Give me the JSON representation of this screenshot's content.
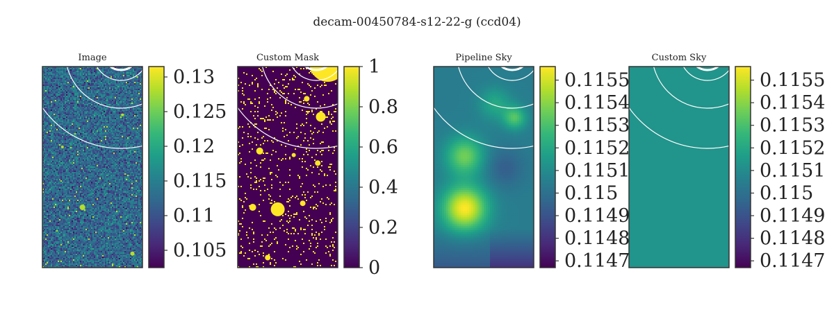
{
  "suptitle": "decam-00450784-s12-22-g (ccd04)",
  "colors": {
    "viridis": [
      "#440154",
      "#482878",
      "#3e4989",
      "#31688e",
      "#26828e",
      "#1f9e89",
      "#35b779",
      "#6ece58",
      "#b5de2b",
      "#fde725"
    ],
    "overlay_circles": "#ffffff",
    "frame": "#333333"
  },
  "chart_data": [
    {
      "type": "heatmap",
      "title": "Image",
      "render": "noise",
      "colorbar": {
        "min": 0.1025,
        "max": 0.1315,
        "ticks": [
          0.105,
          0.11,
          0.115,
          0.12,
          0.125,
          0.13
        ],
        "tick_labels": [
          "0.105",
          "0.11",
          "0.115",
          "0.12",
          "0.125",
          "0.13"
        ]
      }
    },
    {
      "type": "heatmap",
      "title": "Custom Mask",
      "render": "mask",
      "colorbar": {
        "min": 0,
        "max": 1,
        "ticks": [
          0,
          0.2,
          0.4,
          0.6,
          0.8,
          1
        ],
        "tick_labels": [
          "0",
          "0.2",
          "0.4",
          "0.6",
          "0.8",
          "1"
        ]
      }
    },
    {
      "type": "heatmap",
      "title": "Pipeline Sky",
      "render": "smooth",
      "colorbar": {
        "min": 0.11467,
        "max": 0.11556,
        "ticks": [
          0.1147,
          0.1148,
          0.1149,
          0.115,
          0.1151,
          0.1152,
          0.1153,
          0.1154,
          0.1155
        ],
        "tick_labels": [
          "0.1147",
          "0.1148",
          "0.1149",
          "0.115",
          "0.1151",
          "0.1152",
          "0.1153",
          "0.1154",
          "0.1155"
        ]
      }
    },
    {
      "type": "heatmap",
      "title": "Custom Sky",
      "render": "constant",
      "constant_value": 0.11513,
      "colorbar": {
        "min": 0.11467,
        "max": 0.11556,
        "ticks": [
          0.1147,
          0.1148,
          0.1149,
          0.115,
          0.1151,
          0.1152,
          0.1153,
          0.1154,
          0.1155
        ],
        "tick_labels": [
          "0.1147",
          "0.1148",
          "0.1149",
          "0.115",
          "0.1151",
          "0.1152",
          "0.1153",
          "0.1154",
          "0.1155"
        ]
      }
    }
  ]
}
